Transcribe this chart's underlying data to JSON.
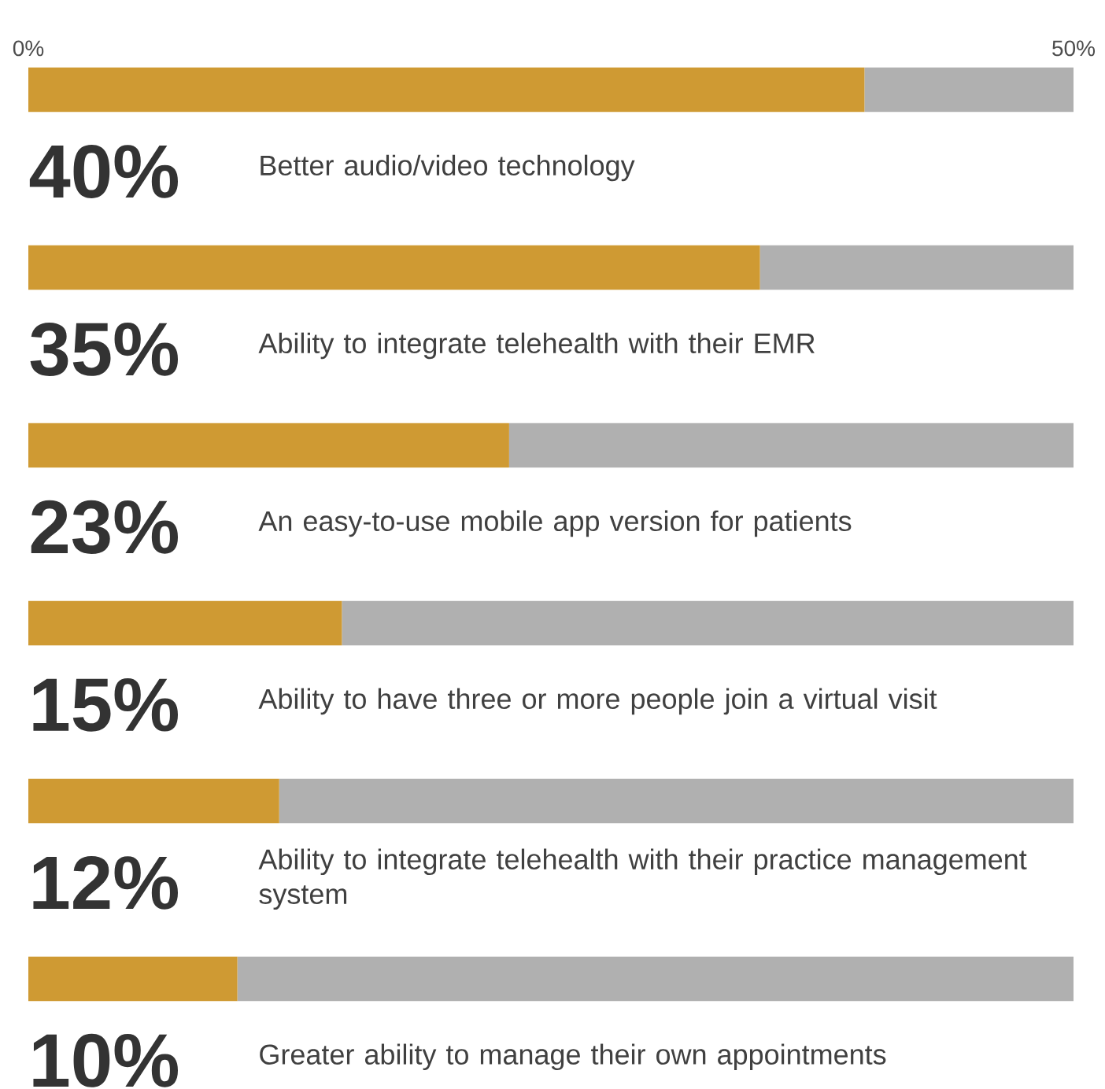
{
  "chart_data": {
    "type": "bar",
    "orientation": "horizontal",
    "stacked": true,
    "categories": [
      "Better audio/video technology",
      "Ability to integrate telehealth with their EMR",
      "An easy-to-use mobile app version for patients",
      "Ability to have three or more people join a virtual visit",
      "Ability to integrate telehealth with their practice management system",
      "Greater ability to manage their own appointments"
    ],
    "series": [
      {
        "color": "#cf9a33",
        "values": [
          40,
          35,
          23,
          15,
          12,
          10
        ],
        "value_labels": [
          "40%",
          "35%",
          "23%",
          "15%",
          "12%",
          "10%"
        ]
      },
      {
        "color": "#b0b0b0",
        "values": [
          10,
          15,
          27,
          35,
          38,
          40
        ]
      }
    ],
    "xlim": [
      0,
      50
    ],
    "xticks": [
      {
        "value": 0,
        "label": "0%"
      },
      {
        "value": 50,
        "label": "50%"
      }
    ]
  }
}
